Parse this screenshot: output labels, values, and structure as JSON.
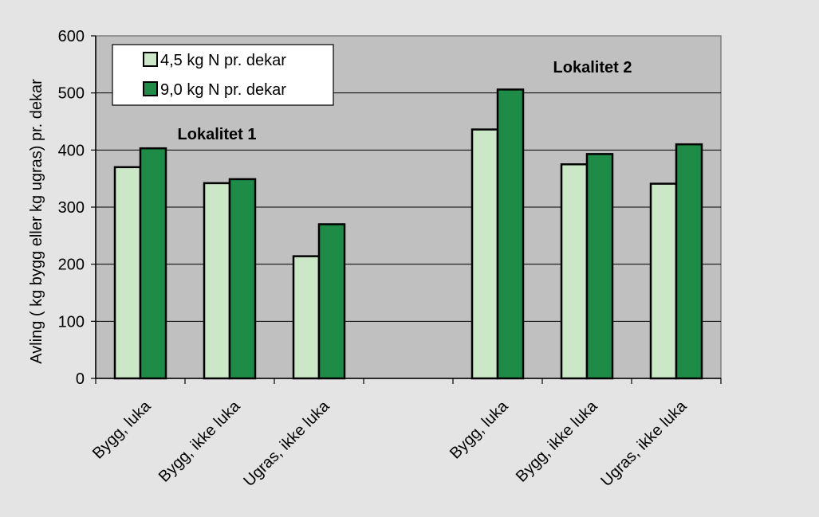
{
  "chart_data": {
    "type": "bar",
    "title": "",
    "xlabel": "",
    "ylabel": "Avling ( kg bygg eller kg ugras) pr. dekar",
    "ylim": [
      0,
      600
    ],
    "yticks": [
      0,
      100,
      200,
      300,
      400,
      500,
      600
    ],
    "grid": true,
    "legend_placement": "top-left",
    "categories": [
      "Bygg, luka",
      "Bygg, ikke luka",
      "Ugras, ikke luka",
      "",
      "Bygg, luka",
      "Bygg, ikke luka",
      "Ugras, ikke luka"
    ],
    "series": [
      {
        "name": "4,5 kg N pr. dekar",
        "color": "#cce6c8",
        "values": [
          370,
          342,
          214,
          null,
          436,
          375,
          341
        ]
      },
      {
        "name": "9,0 kg N pr. dekar",
        "color": "#1e8c46",
        "values": [
          403,
          349,
          270,
          null,
          506,
          393,
          410
        ]
      }
    ],
    "annotations": [
      {
        "text": "Lokalitet 1"
      },
      {
        "text": "Lokalitet 2"
      }
    ],
    "colors": {
      "plot_background": "#c0c0c0",
      "page_background": "#e4e4e4"
    }
  }
}
